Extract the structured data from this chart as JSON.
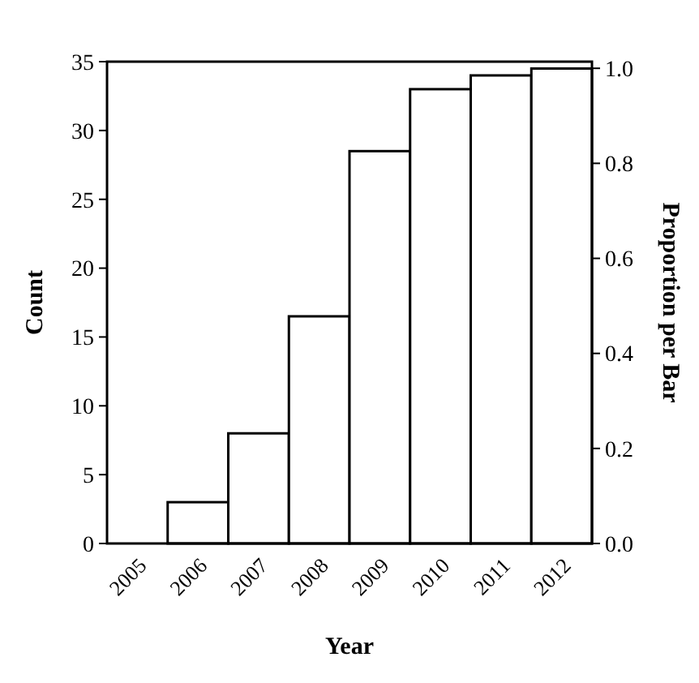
{
  "chart_data": {
    "type": "bar",
    "xlabel": "Year",
    "ylabel": "Count",
    "y2label": "Proportion per Bar",
    "categories": [
      "2005",
      "2006",
      "2007",
      "2008",
      "2009",
      "2010",
      "2011",
      "2012"
    ],
    "values": [
      0,
      3,
      8,
      16.5,
      28.5,
      33,
      34,
      34.5
    ],
    "color": "#ffffff",
    "ylim": [
      0,
      35
    ],
    "yticks": [
      0,
      5,
      10,
      15,
      20,
      25,
      30,
      35
    ],
    "y2lim": [
      0,
      1.014
    ],
    "y2ticks": [
      {
        "value": 0,
        "label": "0.0"
      },
      {
        "value": 0.2,
        "label": "0.2"
      },
      {
        "value": 0.4,
        "label": "0.4"
      },
      {
        "value": 0.6,
        "label": "0.6"
      },
      {
        "value": 0.8,
        "label": "0.8"
      },
      {
        "value": 1,
        "label": "1.0"
      }
    ],
    "grid": false
  }
}
